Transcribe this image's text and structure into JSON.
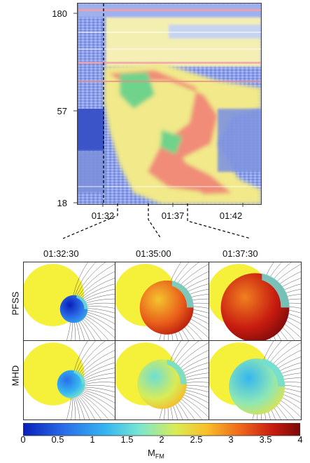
{
  "chart_data": [
    {
      "type": "heatmap",
      "y_ticks": [
        "180",
        "57",
        "18"
      ],
      "x_ticks": [
        "01:32",
        "01:37",
        "01:42"
      ],
      "colors": {
        "low": "#3b54c7",
        "mid": "#f1e98a",
        "high": "#f08c78",
        "peak": "#6fd38b"
      }
    },
    {
      "type": "heatmap",
      "panel_times": [
        "01:32:30",
        "01:35:00",
        "01:37:30"
      ],
      "rows": [
        "PFSS",
        "MHD"
      ],
      "panels": [
        {
          "row": "PFSS",
          "time": "01:32:30",
          "mean_level": 0.6
        },
        {
          "row": "PFSS",
          "time": "01:35:00",
          "mean_level": 3.2
        },
        {
          "row": "PFSS",
          "time": "01:37:30",
          "mean_level": 3.6
        },
        {
          "row": "MHD",
          "time": "01:32:30",
          "mean_level": 1.2
        },
        {
          "row": "MHD",
          "time": "01:35:00",
          "mean_level": 2.2
        },
        {
          "row": "MHD",
          "time": "01:37:30",
          "mean_level": 1.8
        }
      ],
      "colorbar": {
        "ticks": [
          "0",
          "0.5",
          "1",
          "1.5",
          "2",
          "2.5",
          "3",
          "3.5",
          "4"
        ],
        "range": [
          0,
          4
        ],
        "label_main": "M",
        "label_sub": "FM"
      }
    }
  ]
}
